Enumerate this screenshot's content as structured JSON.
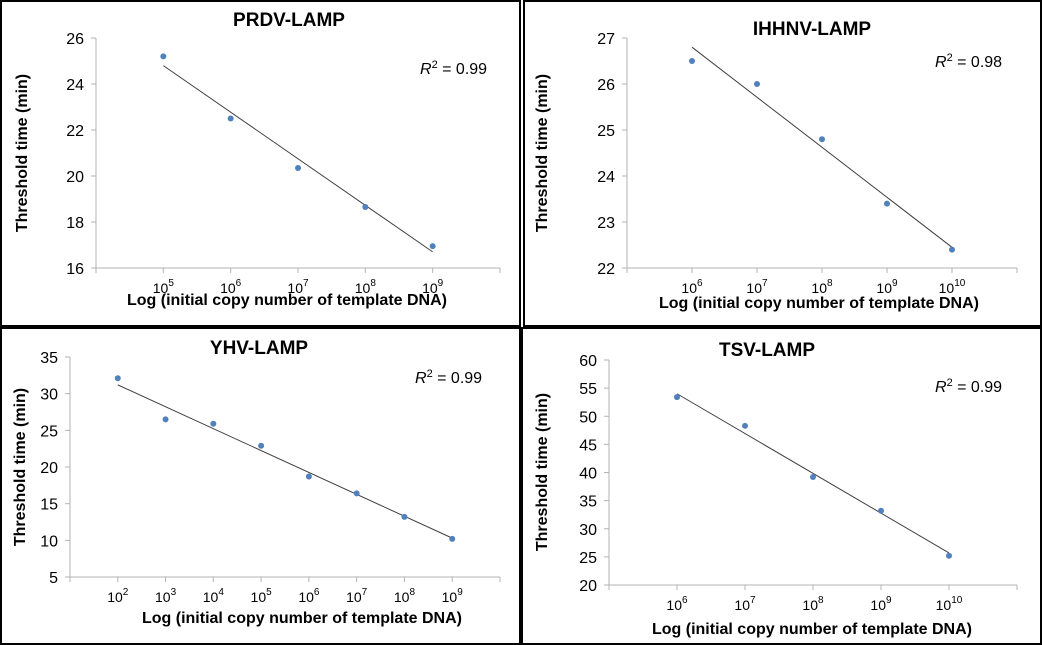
{
  "chart_data": [
    {
      "type": "scatter",
      "title": "PRDV-LAMP",
      "xlabel": "Log (initial copy number of template DNA)",
      "ylabel": "Threshold time (min)",
      "x_tick_labels": [
        {
          "base": "10",
          "exp": "5"
        },
        {
          "base": "10",
          "exp": "6"
        },
        {
          "base": "10",
          "exp": "7"
        },
        {
          "base": "10",
          "exp": "8"
        },
        {
          "base": "10",
          "exp": "9"
        }
      ],
      "xlim": [
        4,
        10
      ],
      "y_ticks": [
        "16",
        "18",
        "20",
        "22",
        "24",
        "26"
      ],
      "ylim": [
        16,
        26
      ],
      "x": [
        5,
        6,
        7,
        8,
        9
      ],
      "y": [
        25.2,
        22.5,
        20.35,
        18.65,
        16.95
      ],
      "trendline": {
        "x": [
          5,
          9
        ],
        "y": [
          24.8,
          16.7
        ]
      },
      "annotation": {
        "italic": "R",
        "sup": "2",
        "rest": " = 0.99"
      },
      "legend": "none",
      "grid": false
    },
    {
      "type": "scatter",
      "title": "IHHNV-LAMP",
      "xlabel": "Log (initial copy number of template DNA)",
      "ylabel": "Threshold time (min)",
      "x_tick_labels": [
        {
          "base": "10",
          "exp": "6"
        },
        {
          "base": "10",
          "exp": "7"
        },
        {
          "base": "10",
          "exp": "8"
        },
        {
          "base": "10",
          "exp": "9"
        },
        {
          "base": "10",
          "exp": "10"
        }
      ],
      "xlim": [
        5,
        11
      ],
      "y_ticks": [
        "22",
        "23",
        "24",
        "25",
        "26",
        "27"
      ],
      "ylim": [
        22,
        27
      ],
      "x": [
        6,
        7,
        8,
        9,
        10
      ],
      "y": [
        26.5,
        26.0,
        24.8,
        23.4,
        22.4
      ],
      "trendline": {
        "x": [
          6,
          10
        ],
        "y": [
          26.8,
          22.45
        ]
      },
      "annotation": {
        "italic": "R",
        "sup": "2",
        "rest": " = 0.98"
      },
      "legend": "none",
      "grid": false
    },
    {
      "type": "scatter",
      "title": "YHV-LAMP",
      "xlabel": "Log (initial copy number of template DNA)",
      "ylabel": "Threshold time (min)",
      "x_tick_labels": [
        {
          "base": "10",
          "exp": "2"
        },
        {
          "base": "10",
          "exp": "3"
        },
        {
          "base": "10",
          "exp": "4"
        },
        {
          "base": "10",
          "exp": "5"
        },
        {
          "base": "10",
          "exp": "6"
        },
        {
          "base": "10",
          "exp": "7"
        },
        {
          "base": "10",
          "exp": "8"
        },
        {
          "base": "10",
          "exp": "9"
        }
      ],
      "xlim": [
        1,
        10
      ],
      "y_ticks": [
        "5",
        "10",
        "15",
        "20",
        "25",
        "30",
        "35"
      ],
      "ylim": [
        5,
        35
      ],
      "x": [
        2,
        3,
        4,
        5,
        6,
        7,
        8,
        9
      ],
      "y": [
        32.1,
        26.5,
        25.9,
        22.9,
        18.7,
        16.4,
        13.2,
        10.2
      ],
      "trendline": {
        "x": [
          2,
          9
        ],
        "y": [
          31.2,
          10.3
        ]
      },
      "annotation": {
        "italic": "R",
        "sup": "2",
        "rest": " = 0.99"
      },
      "legend": "none",
      "grid": false
    },
    {
      "type": "scatter",
      "title": "TSV-LAMP",
      "xlabel": "Log (initial copy number of template DNA)",
      "ylabel": "Threshold time (min)",
      "x_tick_labels": [
        {
          "base": "10",
          "exp": "6"
        },
        {
          "base": "10",
          "exp": "7"
        },
        {
          "base": "10",
          "exp": "8"
        },
        {
          "base": "10",
          "exp": "9"
        },
        {
          "base": "10",
          "exp": "10"
        }
      ],
      "xlim": [
        5,
        11
      ],
      "y_ticks": [
        "20",
        "25",
        "30",
        "35",
        "40",
        "45",
        "50",
        "55",
        "60"
      ],
      "ylim": [
        20,
        60
      ],
      "x": [
        6,
        7,
        8,
        9,
        10
      ],
      "y": [
        53.4,
        48.3,
        39.2,
        33.2,
        25.2
      ],
      "trendline": {
        "x": [
          6,
          10
        ],
        "y": [
          54.0,
          25.7
        ]
      },
      "annotation": {
        "italic": "R",
        "sup": "2",
        "rest": " = 0.99"
      },
      "legend": "none",
      "grid": false
    }
  ]
}
